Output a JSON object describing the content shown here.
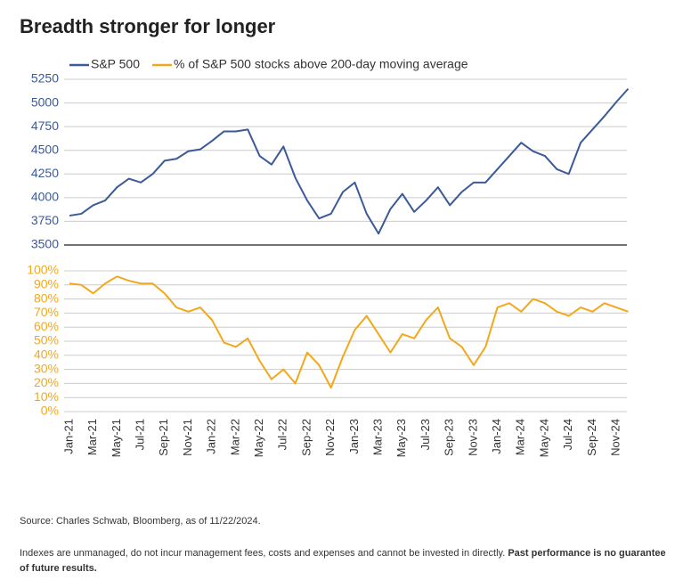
{
  "chart_data": {
    "type": "line",
    "title": "Breadth stronger for longer",
    "categories": [
      "Jan-21",
      null,
      "Mar-21",
      null,
      "May-21",
      null,
      "Jul-21",
      null,
      "Sep-21",
      null,
      "Nov-21",
      null,
      "Jan-22",
      null,
      "Mar-22",
      null,
      "May-22",
      null,
      "Jul-22",
      null,
      "Sep-22",
      null,
      "Nov-22",
      null,
      "Jan-23",
      null,
      "Mar-23",
      null,
      "May-23",
      null,
      "Jul-23",
      null,
      "Sep-23",
      null,
      "Nov-23",
      null,
      "Jan-24",
      null,
      "Mar-24",
      null,
      "May-24",
      null,
      "Jul-24",
      null,
      "Sep-24",
      null,
      "Nov-24",
      null
    ],
    "series": [
      {
        "name": "S&P 500",
        "color": "#3a5a98",
        "values": [
          3810,
          3830,
          3920,
          3970,
          4110,
          4200,
          4160,
          4250,
          4390,
          4410,
          4490,
          4510,
          4600,
          4700,
          4700,
          4720,
          4440,
          4350,
          4540,
          4210,
          3970,
          3780,
          3830,
          4060,
          4160,
          3830,
          3620,
          3880,
          4040,
          3850,
          3970,
          4110,
          3920,
          4060,
          4160,
          4160,
          4300,
          4440,
          4580,
          4490,
          4440,
          4300,
          4250,
          4580,
          4720,
          4860,
          5010,
          5150
        ]
      },
      {
        "name": "% of S&P 500 stocks above 200-day moving average",
        "color": "#f2a81d",
        "axis": "y2",
        "values": [
          91,
          90,
          84,
          91,
          96,
          93,
          91,
          91,
          84,
          74,
          71,
          74,
          65,
          49,
          46,
          52,
          36,
          23,
          30,
          20,
          42,
          33,
          17,
          39,
          58,
          68,
          55,
          42,
          55,
          52,
          65,
          74,
          52,
          46,
          33,
          46,
          74,
          77,
          71,
          80,
          77,
          71,
          68,
          74,
          71,
          77,
          74,
          71
        ]
      }
    ],
    "ylim": [
      3500,
      5250
    ],
    "yticks": [
      3500,
      3750,
      4000,
      4250,
      4500,
      4750,
      5000,
      5250
    ],
    "y2lim": [
      0,
      100
    ],
    "y2ticks": [
      {
        "value": 0,
        "label": "0%"
      },
      {
        "value": 10,
        "label": "10%"
      },
      {
        "value": 20,
        "label": "20%"
      },
      {
        "value": 30,
        "label": "30%"
      },
      {
        "value": 40,
        "label": "40%"
      },
      {
        "value": 50,
        "label": "50%"
      },
      {
        "value": 60,
        "label": "60%"
      },
      {
        "value": 70,
        "label": "70%"
      },
      {
        "value": 80,
        "label": "80%"
      },
      {
        "value": 90,
        "label": "90%"
      },
      {
        "value": 100,
        "label": "100%"
      }
    ],
    "grid": true
  },
  "footer": {
    "source": "Source: Charles Schwab, Bloomberg, as of 11/22/2024.",
    "disclaimer": "Indexes are unmanaged, do not incur management fees, costs and expenses and cannot be invested in directly.",
    "disclaimer_bold": "Past performance is no guarantee of future results."
  }
}
